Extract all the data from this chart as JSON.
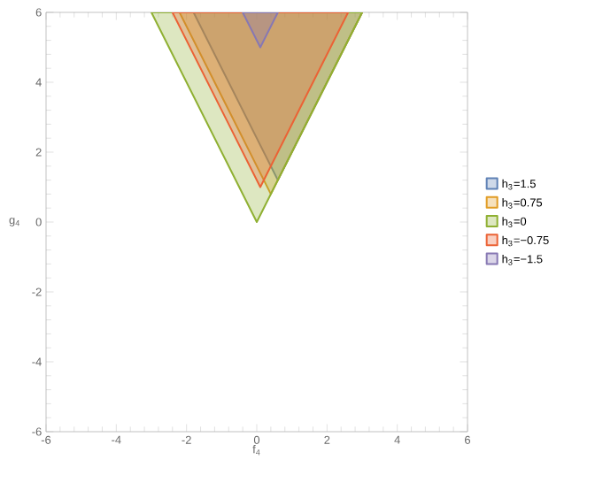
{
  "chart_data": {
    "type": "area",
    "xlabel": "f$_{4}$",
    "ylabel": "g$_{4}$",
    "xlim": [
      -6,
      6
    ],
    "ylim": [
      -6,
      6
    ],
    "xticks": [
      -6,
      -4,
      -2,
      0,
      2,
      4,
      6
    ],
    "yticks": [
      -6,
      -4,
      -2,
      0,
      2,
      4,
      6
    ],
    "legend": "right",
    "series": [
      {
        "name": "h$_{3}$=1.5",
        "color": "#5e81b5",
        "x": [
          -1.8,
          3,
          0.6
        ],
        "values": [
          6,
          6,
          1.2
        ]
      },
      {
        "name": "h$_{3}$=0.75",
        "color": "#e19c24",
        "x": [
          -2.2,
          3,
          0.4
        ],
        "values": [
          6,
          6,
          0.8
        ]
      },
      {
        "name": "h$_{3}$=0",
        "color": "#8fb032",
        "x": [
          -3,
          3,
          0
        ],
        "values": [
          6,
          6,
          0
        ]
      },
      {
        "name": "h$_{3}$=−0.75",
        "color": "#eb6235",
        "x": [
          -2.4,
          2.6,
          0.1
        ],
        "values": [
          6,
          6,
          1.0
        ]
      },
      {
        "name": "h$_{3}$=−1.5",
        "color": "#8778b3",
        "x": [
          -0.4,
          0.6,
          0.1
        ],
        "values": [
          6,
          6,
          5.0
        ]
      }
    ]
  }
}
